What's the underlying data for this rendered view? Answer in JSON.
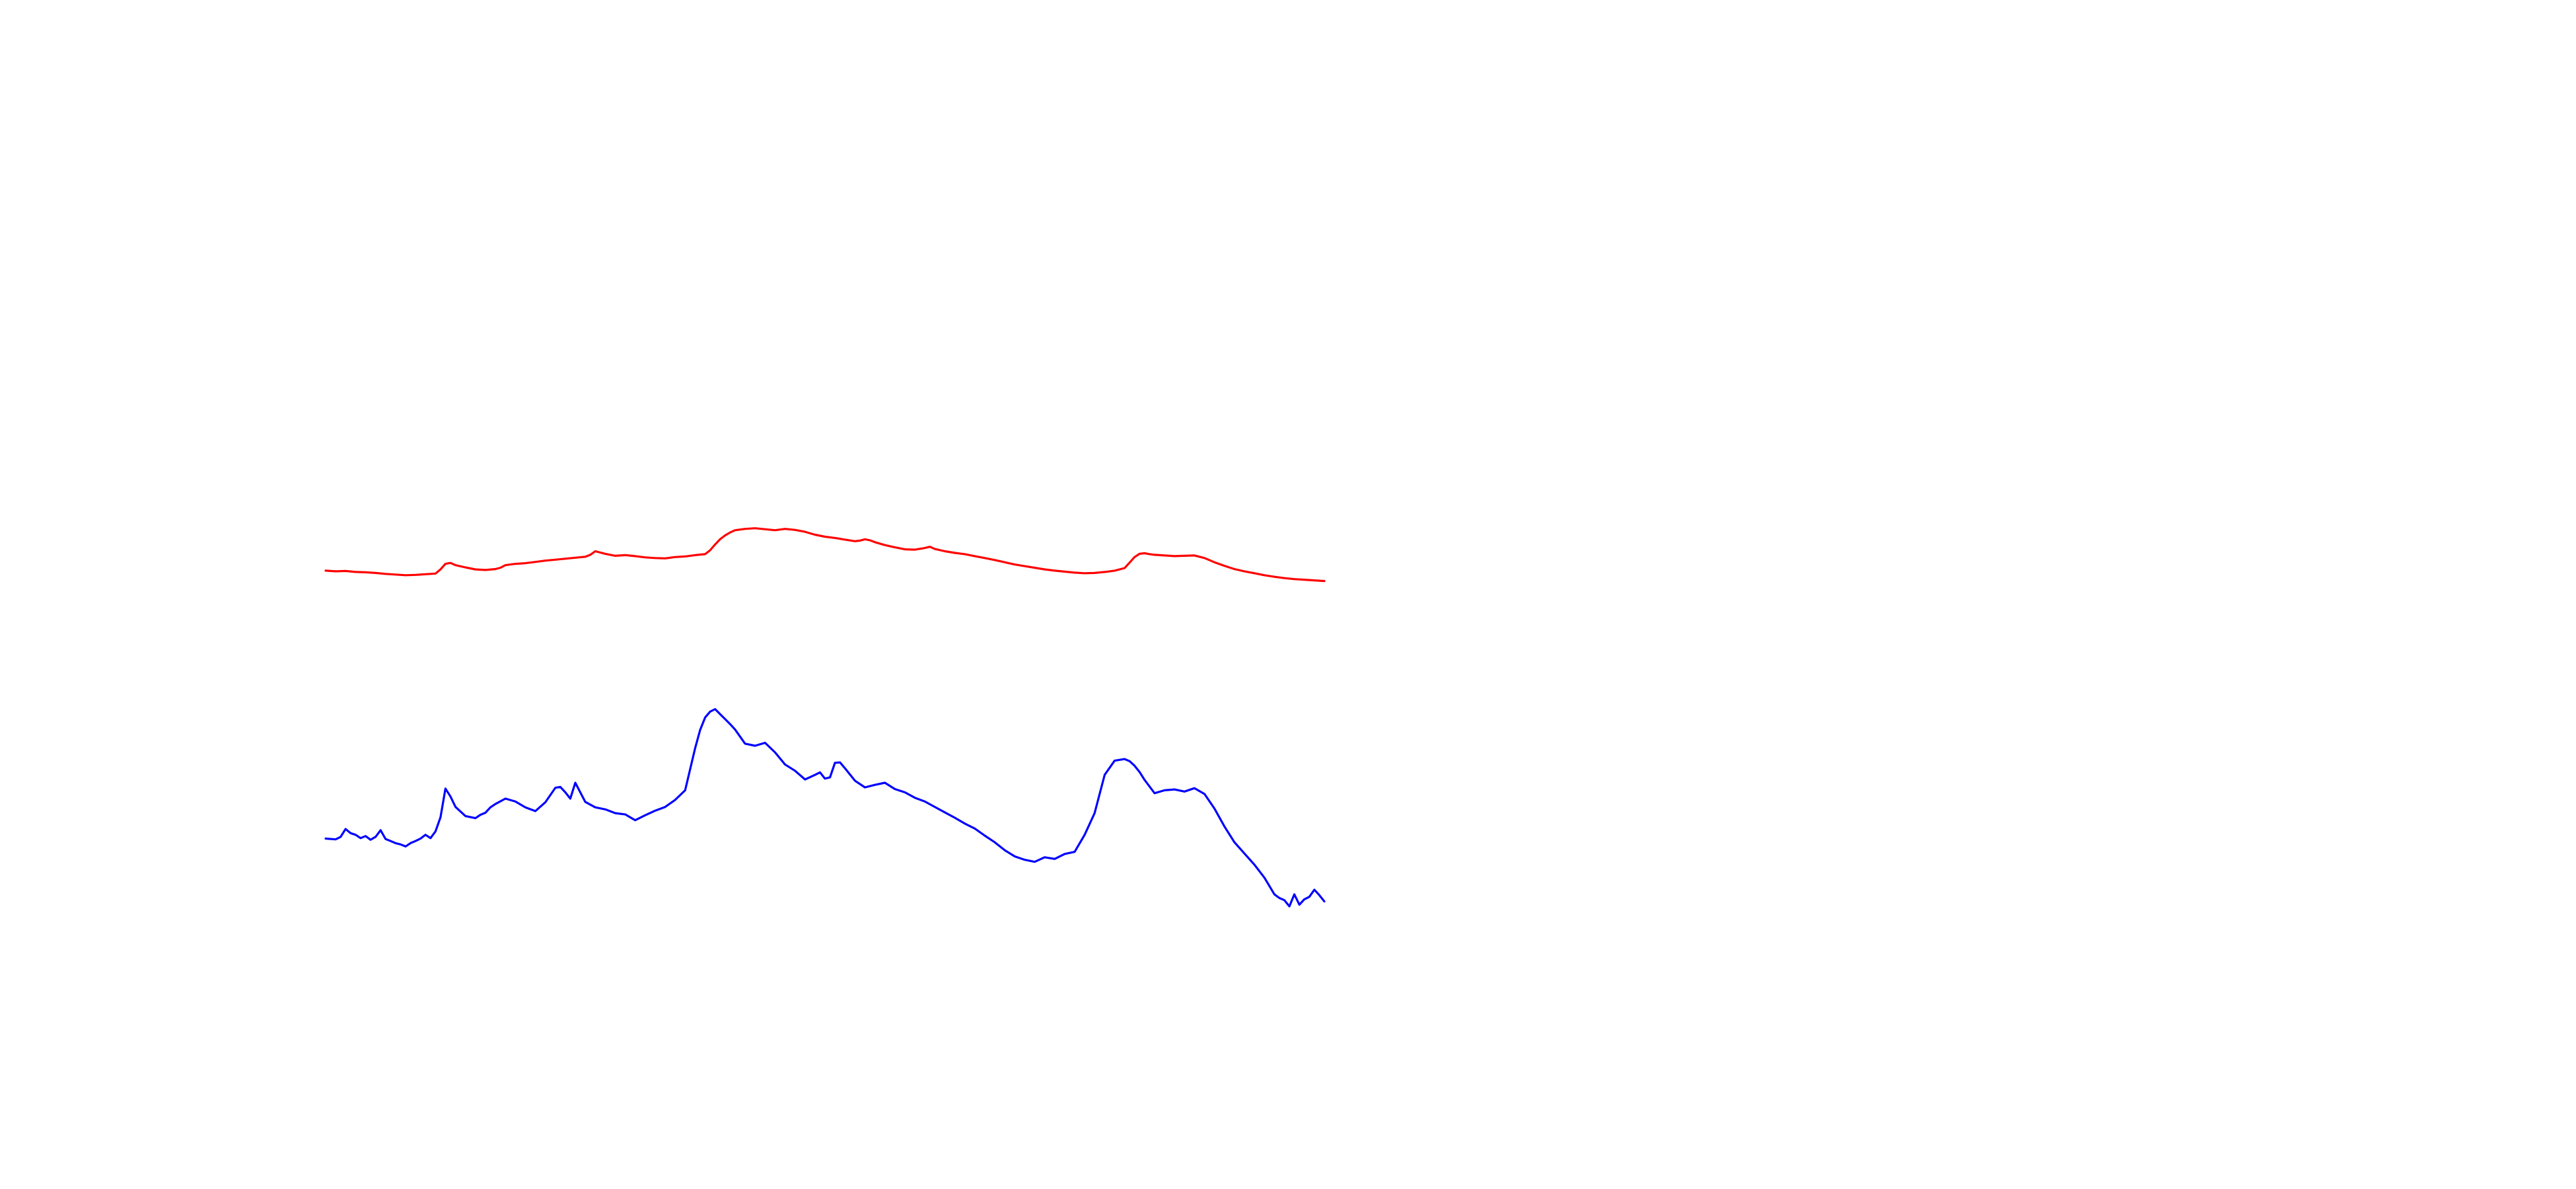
{
  "chart_data": {
    "type": "line",
    "title": "",
    "xlabel": "",
    "ylabel": "",
    "grid": false,
    "legend": "none",
    "axes_visible": false,
    "x_range": [
      0,
      200
    ],
    "series": [
      {
        "color": "#ff0000",
        "x": [
          0,
          2,
          4,
          6,
          8,
          10,
          12,
          14,
          16,
          18,
          20,
          22,
          23,
          24,
          25,
          26,
          28,
          30,
          32,
          34,
          35,
          36,
          38,
          40,
          42,
          44,
          46,
          48,
          50,
          52,
          53,
          54,
          56,
          58,
          60,
          62,
          64,
          66,
          68,
          70,
          72,
          74,
          76,
          77,
          78,
          79,
          80,
          81,
          82,
          84,
          86,
          88,
          90,
          92,
          94,
          96,
          98,
          100,
          102,
          104,
          106,
          107,
          108,
          109,
          110,
          112,
          114,
          116,
          118,
          120,
          121,
          122,
          124,
          126,
          128,
          130,
          132,
          134,
          136,
          138,
          140,
          142,
          144,
          146,
          148,
          150,
          152,
          154,
          156,
          158,
          160,
          161,
          162,
          163,
          164,
          165,
          166,
          168,
          170,
          172,
          174,
          176,
          178,
          180,
          182,
          184,
          186,
          188,
          190,
          192,
          194,
          196,
          198,
          200
        ],
        "y": [
          -0.8,
          -1.0,
          -0.9,
          -1.2,
          -1.3,
          -1.5,
          -1.8,
          -2.0,
          -2.2,
          -2.1,
          -1.9,
          -1.7,
          -0.4,
          1.3,
          1.6,
          0.9,
          0.2,
          -0.4,
          -0.6,
          -0.3,
          0.1,
          0.9,
          1.3,
          1.5,
          1.9,
          2.3,
          2.6,
          2.9,
          3.2,
          3.5,
          4.1,
          5.2,
          4.4,
          3.8,
          4.0,
          3.7,
          3.3,
          3.1,
          3.0,
          3.4,
          3.6,
          4.0,
          4.3,
          5.5,
          7.3,
          8.9,
          10.1,
          11.0,
          11.7,
          12.1,
          12.3,
          12.0,
          11.7,
          12.1,
          11.8,
          11.2,
          10.3,
          9.7,
          9.3,
          8.8,
          8.3,
          8.5,
          8.9,
          8.6,
          8.0,
          7.1,
          6.4,
          5.8,
          5.7,
          6.2,
          6.6,
          5.9,
          5.2,
          4.7,
          4.3,
          3.7,
          3.1,
          2.5,
          1.8,
          1.1,
          0.6,
          0.1,
          -0.4,
          -0.8,
          -1.1,
          -1.4,
          -1.6,
          -1.5,
          -1.2,
          -0.8,
          0.0,
          1.7,
          3.4,
          4.4,
          4.6,
          4.3,
          4.1,
          3.9,
          3.7,
          3.8,
          3.9,
          3.1,
          1.8,
          0.7,
          -0.3,
          -1.0,
          -1.6,
          -2.2,
          -2.7,
          -3.1,
          -3.4,
          -3.6,
          -3.8,
          -4.0
        ]
      },
      {
        "color": "#0000ff",
        "x": [
          0,
          2,
          3,
          4,
          5,
          6,
          7,
          8,
          9,
          10,
          11,
          12,
          13,
          14,
          15,
          16,
          17,
          18,
          19,
          20,
          21,
          22,
          23,
          24,
          25,
          26,
          28,
          30,
          31,
          32,
          33,
          34,
          36,
          38,
          40,
          42,
          44,
          46,
          47,
          48,
          49,
          50,
          52,
          54,
          56,
          58,
          60,
          62,
          64,
          66,
          68,
          70,
          72,
          74,
          75,
          76,
          77,
          78,
          79,
          80,
          81,
          82,
          84,
          86,
          88,
          90,
          92,
          94,
          96,
          98,
          99,
          100,
          101,
          102,
          103,
          104,
          106,
          108,
          110,
          112,
          114,
          116,
          118,
          120,
          122,
          124,
          126,
          128,
          130,
          132,
          134,
          136,
          138,
          140,
          142,
          144,
          146,
          148,
          150,
          152,
          154,
          156,
          158,
          160,
          161,
          162,
          163,
          164,
          165,
          166,
          168,
          170,
          172,
          174,
          176,
          178,
          180,
          182,
          184,
          186,
          188,
          190,
          191,
          192,
          193,
          194,
          195,
          196,
          197,
          198,
          199,
          200
        ],
        "y": [
          -1.5,
          -1.7,
          -1.1,
          0.8,
          -0.2,
          -0.6,
          -1.4,
          -0.9,
          -1.8,
          -1.1,
          0.5,
          -1.6,
          -2.1,
          -2.6,
          -2.9,
          -3.4,
          -2.6,
          -2.1,
          -1.5,
          -0.6,
          -1.4,
          0.2,
          3.6,
          10.5,
          8.6,
          6.1,
          3.9,
          3.4,
          4.2,
          4.7,
          6.0,
          6.8,
          8.1,
          7.4,
          6.0,
          5.1,
          7.2,
          10.7,
          10.9,
          9.6,
          8.1,
          11.9,
          7.3,
          6.0,
          5.5,
          4.6,
          4.3,
          2.9,
          4.1,
          5.2,
          6.1,
          7.8,
          10.1,
          20.2,
          24.6,
          27.6,
          29.0,
          29.6,
          28.4,
          27.2,
          26.0,
          24.7,
          21.3,
          20.8,
          21.5,
          19.2,
          16.3,
          14.8,
          12.7,
          13.8,
          14.4,
          12.9,
          13.2,
          16.7,
          16.8,
          15.4,
          12.4,
          10.8,
          11.4,
          11.9,
          10.4,
          9.6,
          8.3,
          7.4,
          6.1,
          4.8,
          3.5,
          2.1,
          0.9,
          -0.8,
          -2.4,
          -4.3,
          -5.8,
          -6.6,
          -7.1,
          -6.0,
          -6.4,
          -5.2,
          -4.7,
          -0.6,
          4.6,
          13.8,
          17.2,
          17.6,
          17.1,
          16.0,
          14.5,
          12.6,
          11.0,
          9.4,
          10.1,
          10.3,
          9.8,
          10.6,
          9.2,
          5.7,
          1.4,
          -2.4,
          -5.1,
          -7.8,
          -10.9,
          -14.9,
          -15.8,
          -16.3,
          -17.8,
          -14.9,
          -17.4,
          -16.1,
          -15.5,
          -13.8,
          -15.1,
          -16.6
        ]
      }
    ]
  }
}
